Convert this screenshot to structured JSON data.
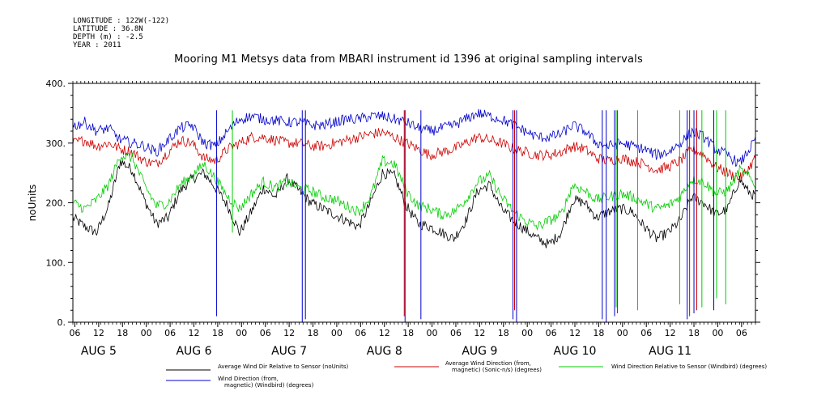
{
  "header_meta": [
    "LONGITUDE : 122W(-122)",
    "LATITUDE : 36.8N",
    "DEPTH (m) : -2.5",
    "YEAR : 2011"
  ],
  "chart_data": {
    "type": "line",
    "title": "Mooring M1 Metsys data from MBARI instrument id 1396 at original sampling intervals",
    "ylabel": "noUnits",
    "xlabel": "",
    "ylim": [
      0,
      400
    ],
    "y_ticks": [
      0,
      100,
      200,
      300,
      400
    ],
    "y_tick_labels": [
      "0.",
      "100.",
      "200.",
      "300.",
      "400."
    ],
    "x_range_hours": [
      0,
      172
    ],
    "x_tick_labels": [
      {
        "h": 0.5,
        "label": "06"
      },
      {
        "h": 6.5,
        "label": "12"
      },
      {
        "h": 12.5,
        "label": "18"
      },
      {
        "h": 18.5,
        "label": "00"
      },
      {
        "h": 24.5,
        "label": "06"
      },
      {
        "h": 30.5,
        "label": "12"
      },
      {
        "h": 36.5,
        "label": "18"
      },
      {
        "h": 42.5,
        "label": "00"
      },
      {
        "h": 48.5,
        "label": "06"
      },
      {
        "h": 54.5,
        "label": "12"
      },
      {
        "h": 60.5,
        "label": "18"
      },
      {
        "h": 66.5,
        "label": "00"
      },
      {
        "h": 72.5,
        "label": "06"
      },
      {
        "h": 78.5,
        "label": "12"
      },
      {
        "h": 84.5,
        "label": "18"
      },
      {
        "h": 90.5,
        "label": "00"
      },
      {
        "h": 96.5,
        "label": "06"
      },
      {
        "h": 102.5,
        "label": "12"
      },
      {
        "h": 108.5,
        "label": "18"
      },
      {
        "h": 114.5,
        "label": "00"
      },
      {
        "h": 120.5,
        "label": "06"
      },
      {
        "h": 126.5,
        "label": "12"
      },
      {
        "h": 132.5,
        "label": "18"
      },
      {
        "h": 138.5,
        "label": "00"
      },
      {
        "h": 144.5,
        "label": "06"
      },
      {
        "h": 150.5,
        "label": "12"
      },
      {
        "h": 156.5,
        "label": "18"
      },
      {
        "h": 162.5,
        "label": "00"
      },
      {
        "h": 168.5,
        "label": "06"
      },
      {
        "h": 174.5,
        "label": "12"
      }
    ],
    "date_labels": [
      {
        "h": 6.5,
        "label": "AUG  5"
      },
      {
        "h": 30.5,
        "label": "AUG  6"
      },
      {
        "h": 54.5,
        "label": "AUG  7"
      },
      {
        "h": 78.5,
        "label": "AUG  8"
      },
      {
        "h": 102.5,
        "label": "AUG  9"
      },
      {
        "h": 126.5,
        "label": "AUG 10"
      },
      {
        "h": 150.5,
        "label": "AUG 11"
      }
    ],
    "series": [
      {
        "name": "Average Wind Dir Relative to Sensor (noUnits)",
        "color": "#000000",
        "x": [
          0,
          3,
          6,
          9,
          12,
          15,
          18,
          21,
          24,
          27,
          30,
          33,
          36,
          39,
          42,
          45,
          48,
          51,
          54,
          57,
          60,
          63,
          66,
          69,
          72,
          75,
          78,
          81,
          84,
          87,
          90,
          93,
          96,
          99,
          102,
          105,
          108,
          111,
          114,
          117,
          120,
          123,
          126,
          129,
          132,
          135,
          138,
          141,
          144,
          147,
          150,
          153,
          156,
          159,
          162,
          165,
          168,
          170,
          172
        ],
        "y": [
          175,
          160,
          150,
          195,
          270,
          255,
          205,
          165,
          175,
          220,
          240,
          250,
          225,
          195,
          150,
          185,
          225,
          210,
          240,
          220,
          200,
          190,
          180,
          170,
          160,
          200,
          250,
          245,
          195,
          165,
          160,
          150,
          140,
          170,
          220,
          230,
          190,
          170,
          155,
          140,
          130,
          150,
          205,
          200,
          175,
          185,
          190,
          185,
          160,
          140,
          150,
          170,
          210,
          200,
          180,
          190,
          240,
          220,
          210
        ]
      },
      {
        "name": "Average Wind Direction (from, magnetic) (Sonic-n/s) (degrees)",
        "color": "#cc0000",
        "x": [
          0,
          3,
          6,
          9,
          12,
          15,
          18,
          21,
          24,
          27,
          30,
          33,
          36,
          39,
          42,
          45,
          48,
          51,
          54,
          57,
          60,
          63,
          66,
          69,
          72,
          75,
          78,
          81,
          84,
          87,
          90,
          93,
          96,
          99,
          102,
          105,
          108,
          111,
          114,
          117,
          120,
          123,
          126,
          129,
          132,
          135,
          138,
          141,
          144,
          147,
          150,
          153,
          156,
          159,
          162,
          165,
          168,
          170,
          172
        ],
        "y": [
          300,
          305,
          295,
          300,
          290,
          285,
          270,
          265,
          285,
          305,
          300,
          275,
          270,
          290,
          300,
          310,
          310,
          305,
          300,
          300,
          295,
          295,
          300,
          305,
          310,
          315,
          318,
          310,
          300,
          290,
          280,
          285,
          290,
          300,
          310,
          305,
          300,
          290,
          285,
          280,
          280,
          285,
          295,
          290,
          275,
          270,
          275,
          270,
          265,
          255,
          260,
          270,
          290,
          280,
          260,
          250,
          240,
          255,
          275
        ]
      },
      {
        "name": "Wind Direction Relative to Sensor (Windbird) (degrees)",
        "color": "#00cc00",
        "x": [
          0,
          3,
          6,
          9,
          12,
          15,
          18,
          21,
          24,
          27,
          30,
          33,
          36,
          39,
          42,
          45,
          48,
          51,
          54,
          57,
          60,
          63,
          66,
          69,
          72,
          75,
          78,
          81,
          84,
          87,
          90,
          93,
          96,
          99,
          102,
          105,
          108,
          111,
          114,
          117,
          120,
          123,
          126,
          129,
          132,
          135,
          138,
          141,
          144,
          147,
          150,
          153,
          156,
          159,
          162,
          165,
          168,
          170,
          172
        ],
        "y": [
          200,
          190,
          205,
          230,
          280,
          275,
          230,
          195,
          200,
          230,
          245,
          265,
          240,
          210,
          190,
          215,
          235,
          225,
          235,
          225,
          220,
          210,
          205,
          195,
          185,
          210,
          270,
          265,
          220,
          195,
          190,
          180,
          185,
          205,
          235,
          245,
          210,
          185,
          170,
          160,
          170,
          180,
          230,
          220,
          205,
          210,
          215,
          210,
          200,
          190,
          195,
          210,
          240,
          235,
          215,
          220,
          255,
          245,
          230
        ]
      },
      {
        "name": "Wind Direction (from, magnetic) (Windbird) (degrees)",
        "color": "#0000cc",
        "x": [
          0,
          3,
          6,
          9,
          12,
          15,
          18,
          21,
          24,
          27,
          30,
          33,
          36,
          39,
          42,
          45,
          48,
          51,
          54,
          57,
          60,
          63,
          66,
          69,
          72,
          75,
          78,
          81,
          84,
          87,
          90,
          93,
          96,
          99,
          102,
          105,
          108,
          111,
          114,
          117,
          120,
          123,
          126,
          129,
          132,
          135,
          138,
          141,
          144,
          147,
          150,
          153,
          156,
          159,
          162,
          165,
          168,
          170,
          172
        ],
        "y": [
          328,
          335,
          320,
          325,
          305,
          300,
          295,
          285,
          305,
          325,
          330,
          300,
          295,
          320,
          340,
          345,
          340,
          338,
          335,
          335,
          330,
          330,
          335,
          340,
          340,
          345,
          345,
          340,
          335,
          325,
          320,
          325,
          330,
          340,
          350,
          345,
          340,
          330,
          320,
          310,
          310,
          315,
          330,
          320,
          300,
          295,
          300,
          295,
          290,
          280,
          285,
          300,
          320,
          310,
          290,
          280,
          265,
          285,
          305
        ]
      }
    ],
    "spikes_blue": [
      [
        36.2,
        10
      ],
      [
        57.8,
        0
      ],
      [
        58.6,
        5
      ],
      [
        83.7,
        0
      ],
      [
        87.7,
        5
      ],
      [
        110.9,
        5
      ],
      [
        111.8,
        0
      ],
      [
        133.4,
        5
      ],
      [
        134.4,
        0
      ],
      [
        136.5,
        10
      ],
      [
        154.8,
        5
      ],
      [
        156.5,
        15
      ],
      [
        161.5,
        20
      ]
    ],
    "spikes_red": [
      [
        83.5,
        10
      ],
      [
        111.3,
        20
      ],
      [
        137.2,
        15
      ],
      [
        155.4,
        10
      ],
      [
        157.2,
        20
      ]
    ],
    "spikes_green": [
      [
        40.2,
        150
      ],
      [
        136.9,
        25
      ],
      [
        142.3,
        20
      ],
      [
        152.9,
        30
      ],
      [
        158.5,
        25
      ],
      [
        162.2,
        40
      ],
      [
        164.5,
        30
      ]
    ],
    "legend": [
      {
        "label": "Average Wind Dir Relative to Sensor (noUnits)",
        "color": "#000000"
      },
      {
        "label": "Average Wind Direction (from,\nmagnetic) (Sonic-n/s) (degrees)",
        "color": "#cc0000"
      },
      {
        "label": "Wind Direction Relative to Sensor (Windbird) (degrees)",
        "color": "#00cc00"
      },
      {
        "label": "Wind Direction (from,\nmagnetic) (Windbird) (degrees)",
        "color": "#0000cc"
      }
    ]
  }
}
